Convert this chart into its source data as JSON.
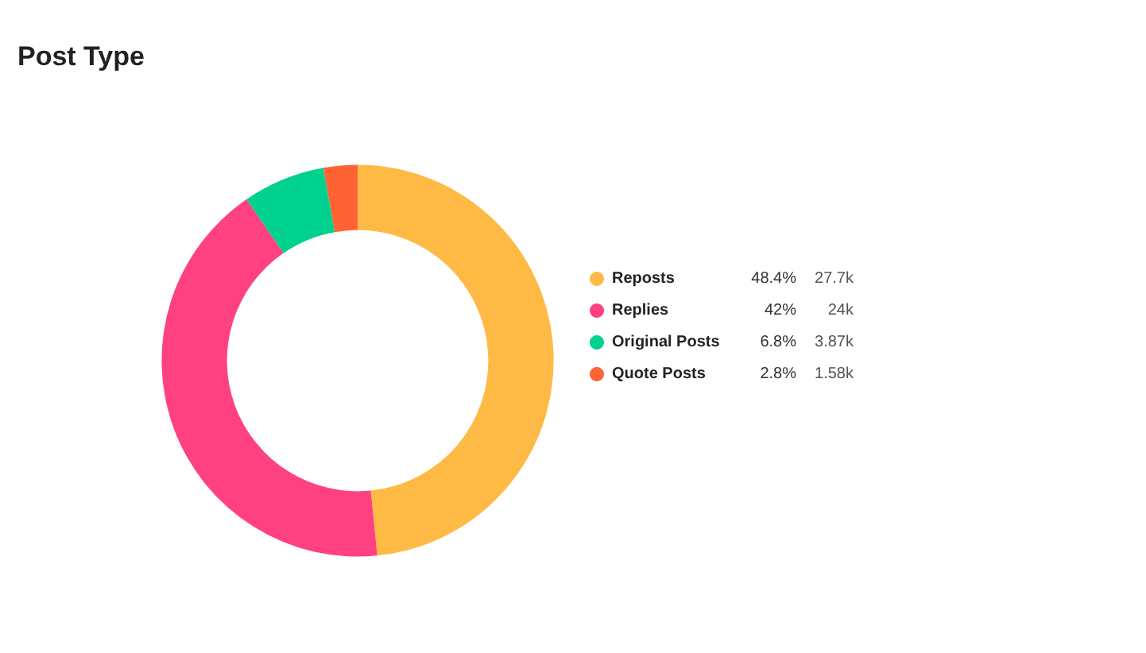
{
  "chart_data": {
    "type": "donut",
    "title": "Post Type",
    "categories": [
      "Reposts",
      "Replies",
      "Original Posts",
      "Quote Posts"
    ],
    "values": [
      48.4,
      42,
      6.8,
      2.8
    ],
    "colors": [
      "#ffba45",
      "#ff4081",
      "#00d18f",
      "#ff6333"
    ],
    "value_labels": [
      "48.4%",
      "42%",
      "6.8%",
      "2.8%"
    ],
    "annotations": [
      {
        "text": "27.7k",
        "x": "Reposts"
      },
      {
        "text": "24k",
        "x": "Replies"
      },
      {
        "text": "3.87k",
        "x": "Original Posts"
      },
      {
        "text": "1.58k",
        "x": "Quote Posts"
      }
    ],
    "legend": "right"
  }
}
